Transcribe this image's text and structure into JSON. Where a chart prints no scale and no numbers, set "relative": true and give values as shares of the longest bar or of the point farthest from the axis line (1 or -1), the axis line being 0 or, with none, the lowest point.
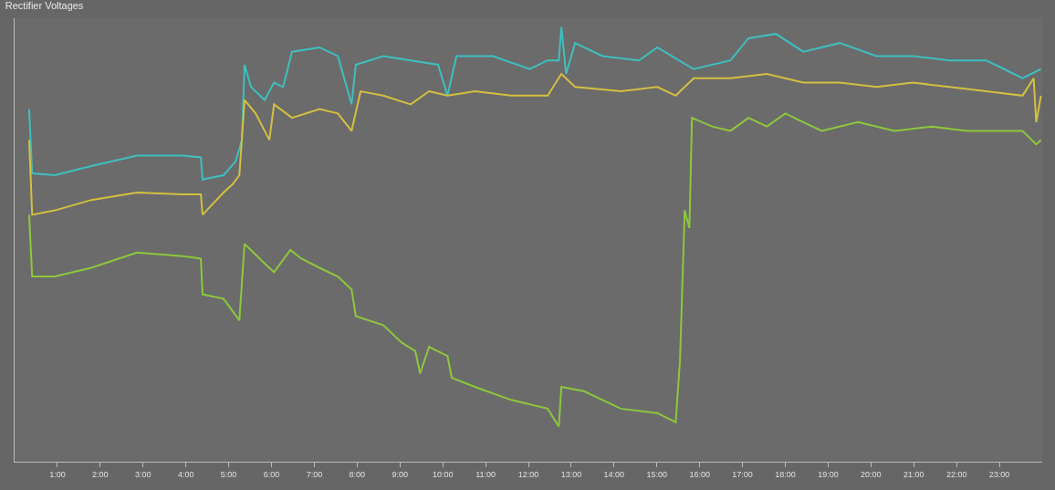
{
  "chart_data": {
    "type": "line",
    "title": "Rectifier Voltages",
    "relative": true,
    "xlim": [
      0,
      24
    ],
    "xticks": [
      {
        "value": 1,
        "label": "1:00"
      },
      {
        "value": 2,
        "label": "2:00"
      },
      {
        "value": 3,
        "label": "3:00"
      },
      {
        "value": 4,
        "label": "4:00"
      },
      {
        "value": 5,
        "label": "5:00"
      },
      {
        "value": 6,
        "label": "6:00"
      },
      {
        "value": 7,
        "label": "7:00"
      },
      {
        "value": 8,
        "label": "8:00"
      },
      {
        "value": 9,
        "label": "9:00"
      },
      {
        "value": 10,
        "label": "10:00"
      },
      {
        "value": 11,
        "label": "11:00"
      },
      {
        "value": 12,
        "label": "12:00"
      },
      {
        "value": 13,
        "label": "13:00"
      },
      {
        "value": 14,
        "label": "14:00"
      },
      {
        "value": 15,
        "label": "15:00"
      },
      {
        "value": 16,
        "label": "16:00"
      },
      {
        "value": 17,
        "label": "17:00"
      },
      {
        "value": 18,
        "label": "18:00"
      },
      {
        "value": 19,
        "label": "19:00"
      },
      {
        "value": 20,
        "label": "20:00"
      },
      {
        "value": 21,
        "label": "21:00"
      },
      {
        "value": 22,
        "label": "22:00"
      },
      {
        "value": 23,
        "label": "23:00"
      }
    ],
    "marker": "none",
    "line_style": "solid",
    "series": [
      {
        "color": "#3fbfbf",
        "x": [
          0.34,
          0.41,
          0.94,
          1.79,
          2.86,
          3.92,
          4.35,
          4.39,
          4.88,
          5.16,
          5.31,
          5.37,
          5.52,
          5.84,
          6.06,
          6.27,
          6.48,
          7.12,
          7.55,
          7.87,
          7.97,
          8.61,
          9.25,
          9.89,
          10.11,
          10.32,
          11.17,
          12.03,
          12.45,
          12.71,
          12.77,
          12.88,
          13.09,
          13.73,
          14.58,
          15.01,
          15.86,
          16.72,
          17.14,
          17.78,
          18.42,
          19.27,
          20.13,
          20.98,
          21.83,
          22.69,
          23.11,
          23.54,
          23.97
        ],
        "values": [
          0.811,
          0.663,
          0.659,
          0.68,
          0.704,
          0.704,
          0.7,
          0.649,
          0.659,
          0.69,
          0.74,
          0.913,
          0.862,
          0.832,
          0.872,
          0.862,
          0.943,
          0.953,
          0.933,
          0.822,
          0.913,
          0.933,
          0.923,
          0.913,
          0.842,
          0.933,
          0.933,
          0.903,
          0.923,
          0.923,
          1.0,
          0.892,
          0.963,
          0.933,
          0.923,
          0.953,
          0.903,
          0.923,
          0.974,
          0.984,
          0.943,
          0.963,
          0.933,
          0.933,
          0.923,
          0.923,
          0.903,
          0.882,
          0.903
        ]
      },
      {
        "color": "#d4c040",
        "x": [
          0.34,
          0.41,
          0.94,
          1.79,
          2.86,
          3.92,
          4.35,
          4.39,
          4.88,
          5.1,
          5.25,
          5.37,
          5.63,
          5.95,
          6.06,
          6.48,
          7.12,
          7.55,
          7.87,
          8.08,
          8.61,
          9.25,
          9.68,
          10.11,
          10.75,
          11.6,
          12.45,
          12.77,
          13.09,
          14.16,
          15.01,
          15.44,
          15.86,
          16.72,
          17.57,
          18.42,
          19.27,
          20.13,
          20.98,
          21.83,
          22.69,
          23.54,
          23.8,
          23.86,
          23.97
        ],
        "values": [
          0.74,
          0.568,
          0.578,
          0.602,
          0.619,
          0.615,
          0.615,
          0.568,
          0.619,
          0.639,
          0.659,
          0.832,
          0.801,
          0.74,
          0.822,
          0.791,
          0.811,
          0.801,
          0.761,
          0.852,
          0.842,
          0.822,
          0.852,
          0.842,
          0.852,
          0.842,
          0.842,
          0.892,
          0.862,
          0.852,
          0.862,
          0.842,
          0.882,
          0.882,
          0.892,
          0.872,
          0.872,
          0.862,
          0.872,
          0.862,
          0.852,
          0.842,
          0.882,
          0.781,
          0.842
        ]
      },
      {
        "color": "#8cc83c",
        "x": [
          0.34,
          0.41,
          0.94,
          1.79,
          2.86,
          3.92,
          4.35,
          4.39,
          4.88,
          5.25,
          5.37,
          5.84,
          6.06,
          6.44,
          6.7,
          7.12,
          7.55,
          7.87,
          7.97,
          8.61,
          9.04,
          9.36,
          9.47,
          9.68,
          10.11,
          10.21,
          10.75,
          11.6,
          12.45,
          12.71,
          12.77,
          13.3,
          14.16,
          15.01,
          15.44,
          15.54,
          15.65,
          15.76,
          15.82,
          16.29,
          16.72,
          17.14,
          17.57,
          18.0,
          18.42,
          18.85,
          19.7,
          20.55,
          21.41,
          22.26,
          23.11,
          23.54,
          23.86,
          23.97
        ],
        "values": [
          0.568,
          0.426,
          0.426,
          0.446,
          0.481,
          0.473,
          0.467,
          0.385,
          0.375,
          0.325,
          0.501,
          0.456,
          0.436,
          0.487,
          0.467,
          0.446,
          0.426,
          0.396,
          0.335,
          0.314,
          0.274,
          0.254,
          0.203,
          0.264,
          0.243,
          0.193,
          0.172,
          0.142,
          0.122,
          0.081,
          0.172,
          0.162,
          0.122,
          0.112,
          0.091,
          0.233,
          0.578,
          0.538,
          0.791,
          0.771,
          0.761,
          0.791,
          0.771,
          0.801,
          0.781,
          0.761,
          0.781,
          0.761,
          0.771,
          0.761,
          0.761,
          0.761,
          0.73,
          0.74
        ]
      }
    ]
  }
}
